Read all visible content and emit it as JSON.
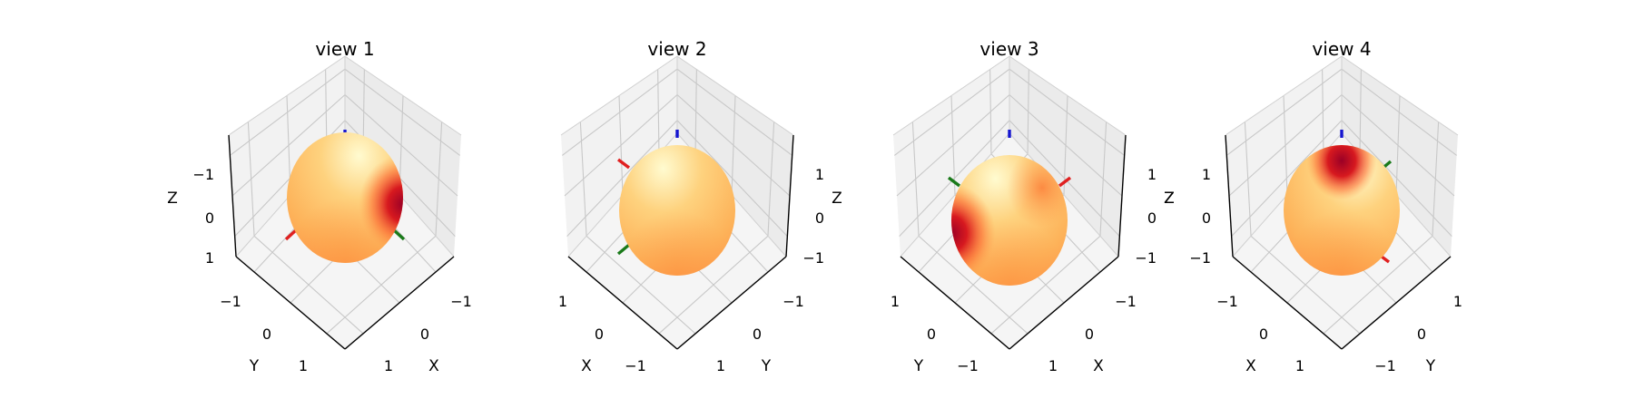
{
  "chart_data": [
    {
      "type": "surface3d",
      "title": "view 1",
      "xlabel": "X",
      "ylabel": "Y",
      "zlabel": "Z",
      "xticks": [
        "−1",
        "0",
        "1"
      ],
      "yticks": [
        "−1",
        "0",
        "1"
      ],
      "zticks": [
        "−1",
        "0",
        "1"
      ],
      "xlim": [
        -1.5,
        1.5
      ],
      "ylim": [
        -1.5,
        1.5
      ],
      "zlim": [
        -1.5,
        1.5
      ],
      "colormap": "YlOrRd",
      "hotspot_side": "right",
      "axis_colors": {
        "x": "#e02020",
        "y": "#1a7a1a",
        "z": "#1515d0"
      }
    },
    {
      "type": "surface3d",
      "title": "view 2",
      "xlabel": "X",
      "ylabel": "Y",
      "zlabel": "Z",
      "xticks": [
        "1",
        "0",
        "−1"
      ],
      "yticks": [
        "−1",
        "0",
        "1"
      ],
      "zticks": [
        "1",
        "0",
        "−1"
      ],
      "xlim": [
        -1.5,
        1.5
      ],
      "ylim": [
        -1.5,
        1.5
      ],
      "zlim": [
        -1.5,
        1.5
      ],
      "colormap": "YlOrRd",
      "hotspot_side": "none",
      "axis_colors": {
        "x": "#e02020",
        "y": "#1a7a1a",
        "z": "#1515d0"
      }
    },
    {
      "type": "surface3d",
      "title": "view 3",
      "xlabel": "X",
      "ylabel": "Y",
      "zlabel": "Z",
      "xticks": [
        "−1",
        "0",
        "1"
      ],
      "yticks": [
        "1",
        "0",
        "−1"
      ],
      "zticks": [
        "1",
        "0",
        "−1"
      ],
      "xlim": [
        -1.5,
        1.5
      ],
      "ylim": [
        -1.5,
        1.5
      ],
      "zlim": [
        -1.5,
        1.5
      ],
      "colormap": "YlOrRd",
      "hotspot_side": "left",
      "axis_colors": {
        "x": "#e02020",
        "y": "#1a7a1a",
        "z": "#1515d0"
      }
    },
    {
      "type": "surface3d",
      "title": "view 4",
      "xlabel": "X",
      "ylabel": "Y",
      "zlabel": "Z",
      "xticks": [
        "−1",
        "0",
        "1"
      ],
      "yticks": [
        "1",
        "0",
        "−1"
      ],
      "zticks": [
        "1",
        "0",
        "−1"
      ],
      "xlim": [
        -1.5,
        1.5
      ],
      "ylim": [
        -1.5,
        1.5
      ],
      "zlim": [
        -1.5,
        1.5
      ],
      "colormap": "YlOrRd",
      "hotspot_side": "top",
      "axis_colors": {
        "x": "#e02020",
        "y": "#1a7a1a",
        "z": "#1515d0"
      }
    }
  ]
}
